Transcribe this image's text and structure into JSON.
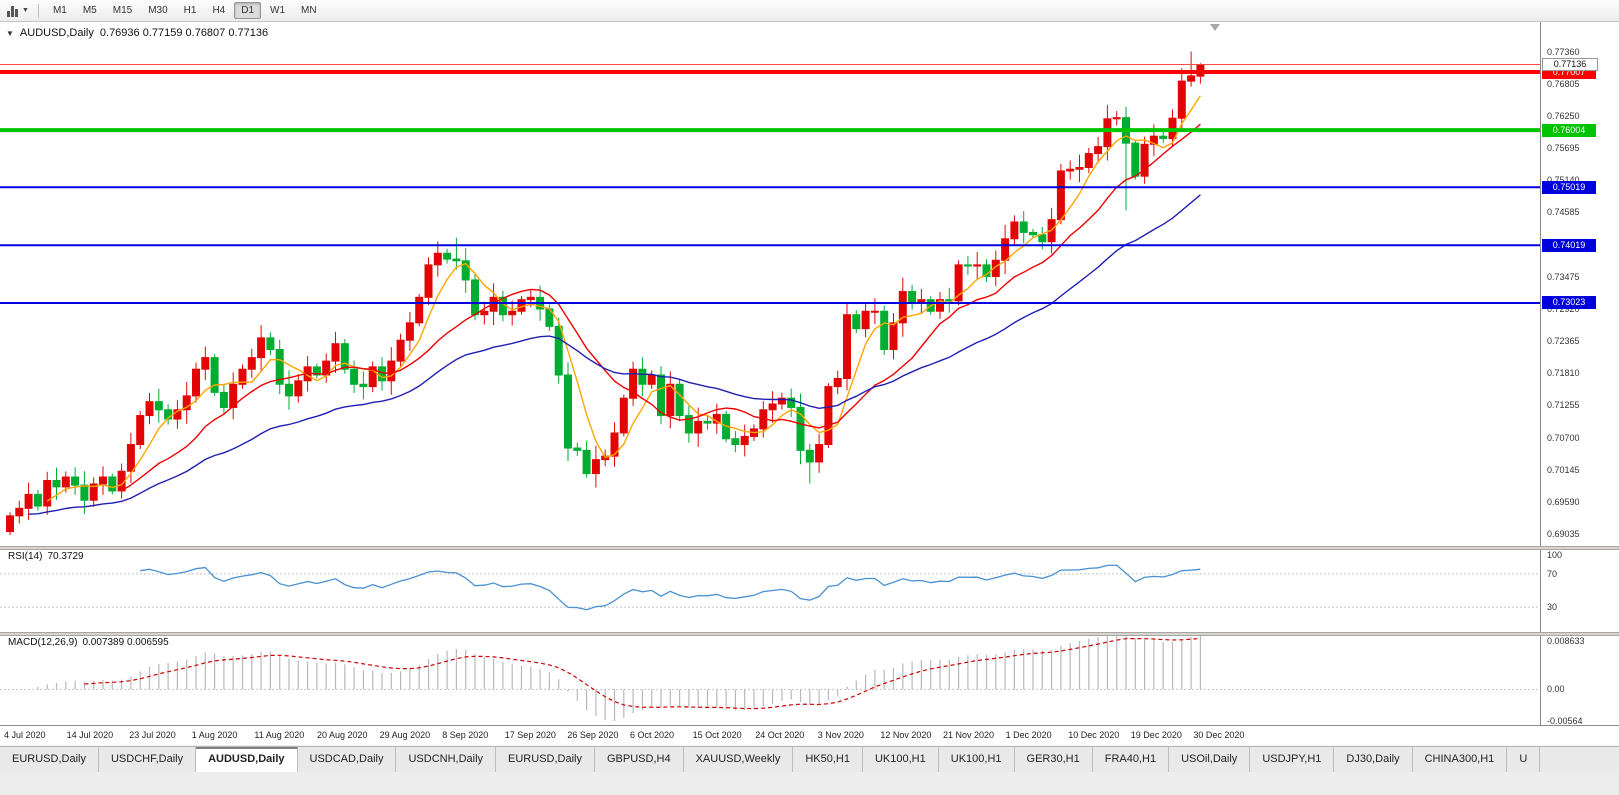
{
  "toolbar": {
    "timeframes": [
      "M1",
      "M5",
      "M15",
      "M30",
      "H1",
      "H4",
      "D1",
      "W1",
      "MN"
    ],
    "active_timeframe": "D1"
  },
  "chart": {
    "title": "AUDUSD,Daily",
    "ohlc": "0.76936 0.77159 0.76807 0.77136"
  },
  "chart_data": {
    "type": "candlestick",
    "symbol": "AUDUSD",
    "timeframe": "Daily",
    "ohlc_header": {
      "open": "0.76936",
      "high": "0.77159",
      "low": "0.76807",
      "close": "0.77136"
    },
    "price_range": [
      0.6883,
      0.7787
    ],
    "open_first": 0.6908,
    "default_wick": 0.0018,
    "closes": [
      0.6935,
      0.6948,
      0.6972,
      0.6952,
      0.6996,
      0.6985,
      0.7002,
      0.6988,
      0.6962,
      0.699,
      0.7002,
      0.6978,
      0.7012,
      0.7058,
      0.7108,
      0.7132,
      0.7118,
      0.7102,
      0.7118,
      0.7142,
      0.7188,
      0.7208,
      0.7148,
      0.7122,
      0.7162,
      0.7188,
      0.7208,
      0.7242,
      0.7222,
      0.7162,
      0.7142,
      0.7168,
      0.7192,
      0.7178,
      0.7202,
      0.7232,
      0.7188,
      0.7162,
      0.7158,
      0.7192,
      0.7168,
      0.7202,
      0.7238,
      0.7268,
      0.7312,
      0.7368,
      0.7388,
      0.7378,
      0.7375,
      0.7342,
      0.7282,
      0.7288,
      0.7312,
      0.7282,
      0.7288,
      0.7308,
      0.7312,
      0.7292,
      0.7262,
      0.7178,
      0.7052,
      0.7048,
      0.7008,
      0.7032,
      0.7038,
      0.7078,
      0.7138,
      0.7188,
      0.7162,
      0.7178,
      0.7108,
      0.7162,
      0.7108,
      0.7078,
      0.7098,
      0.7095,
      0.711,
      0.7068,
      0.7058,
      0.7072,
      0.7085,
      0.7118,
      0.7128,
      0.7138,
      0.7122,
      0.7048,
      0.7028,
      0.7058,
      0.7158,
      0.7172,
      0.7282,
      0.7258,
      0.7288,
      0.7288,
      0.7222,
      0.7268,
      0.7322,
      0.7302,
      0.7308,
      0.7288,
      0.7308,
      0.7306,
      0.7368,
      0.7366,
      0.7368,
      0.7348,
      0.7376,
      0.7413,
      0.7442,
      0.7424,
      0.742,
      0.7408,
      0.7446,
      0.753,
      0.7533,
      0.7536,
      0.756,
      0.7572,
      0.762,
      0.7622,
      0.7578,
      0.7521,
      0.7576,
      0.759,
      0.7586,
      0.7621,
      0.7685,
      0.7694,
      0.77136
    ],
    "overrides": {
      "48": {
        "h": 0.7415
      },
      "62": {
        "l": 0.7001
      },
      "86": {
        "l": 0.6991
      },
      "113": {
        "h": 0.7542
      },
      "120": {
        "l": 0.7462
      },
      "127": {
        "h": 0.7736
      },
      "128": {
        "o": 0.76936,
        "h": 0.77159,
        "l": 0.76807,
        "c": 0.77136
      }
    },
    "y_ticks": [
      "0.77360",
      "0.76805",
      "0.76250",
      "0.75695",
      "0.75140",
      "0.74585",
      "0.74030",
      "0.73475",
      "0.72920",
      "0.72365",
      "0.71810",
      "0.71255",
      "0.70700",
      "0.70145",
      "0.69590",
      "0.69035"
    ],
    "current_price": {
      "label": "0.77136",
      "price": 0.77136,
      "line_color": "#ff4a4a"
    },
    "hlines": [
      {
        "price": 0.77007,
        "label": "0.77007",
        "color": "#ff0000",
        "width": 4
      },
      {
        "price": 0.76004,
        "label": "0.76004",
        "color": "#00c400",
        "width": 4
      },
      {
        "price": 0.75019,
        "label": "0.75019",
        "color": "#0000dd",
        "width": 2
      },
      {
        "price": 0.74019,
        "label": "0.74019",
        "color": "#0000dd",
        "width": 2
      },
      {
        "price": 0.73023,
        "label": "0.73023",
        "color": "#0000dd",
        "width": 2
      }
    ],
    "x_labels": [
      "4 Jul 2020",
      "14 Jul 2020",
      "23 Jul 2020",
      "1 Aug 2020",
      "11 Aug 2020",
      "20 Aug 2020",
      "29 Aug 2020",
      "8 Sep 2020",
      "17 Sep 2020",
      "26 Sep 2020",
      "6 Oct 2020",
      "15 Oct 2020",
      "24 Oct 2020",
      "3 Nov 2020",
      "12 Nov 2020",
      "21 Nov 2020",
      "1 Dec 2020",
      "10 Dec 2020",
      "19 Dec 2020",
      "30 Dec 2020"
    ],
    "colors": {
      "up_candle": "#e30505",
      "down_candle": "#00ad30",
      "ma_fast": "#ffa500",
      "ma_mid": "#f00000",
      "ma_slow": "#1f1fb4",
      "rsi_line": "#4a90d2",
      "macd_histogram": "#b8b8b8",
      "macd_signal": "#d00000"
    },
    "moving_average_periods": {
      "fast": 5,
      "mid": 13,
      "slow": 34
    },
    "indicators": {
      "rsi": {
        "label": "RSI(14)",
        "value": "70.3729",
        "period": 14,
        "levels": [
          "100",
          "70",
          "30"
        ],
        "level_values": [
          100,
          70,
          30
        ]
      },
      "macd": {
        "label": "MACD(12,26,9)",
        "values": "0.007389 0.006595",
        "axis_labels": [
          "0.008633",
          "0.00",
          "-0.00564"
        ],
        "axis_values": [
          0.008633,
          0,
          -0.00564
        ],
        "range": [
          -0.00564,
          0.008633
        ]
      }
    }
  },
  "tabs": {
    "active_index": 2,
    "items": [
      "EURUSD,Daily",
      "USDCHF,Daily",
      "AUDUSD,Daily",
      "USDCAD,Daily",
      "USDCNH,Daily",
      "EURUSD,Daily",
      "GBPUSD,H4",
      "XAUUSD,Weekly",
      "HK50,H1",
      "UK100,H1",
      "UK100,H1",
      "GER30,H1",
      "FRA40,H1",
      "USOil,Daily",
      "USDJPY,H1",
      "DJ30,Daily",
      "CHINA300,H1",
      "U"
    ]
  }
}
